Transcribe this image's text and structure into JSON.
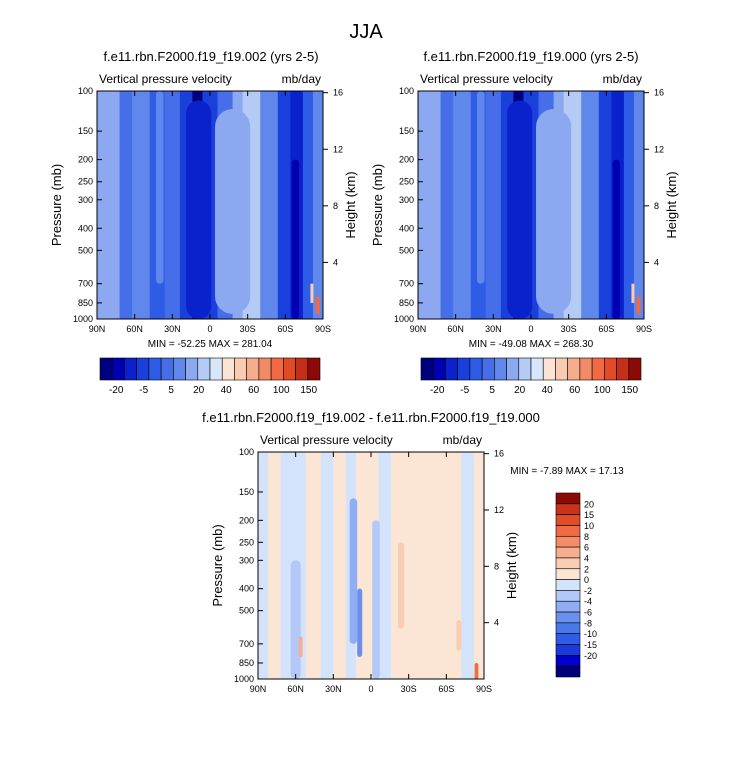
{
  "figure_title": "JJA",
  "colors": {
    "main_levels": [
      "#00007f",
      "#0000b3",
      "#0a22cc",
      "#1a40dc",
      "#2e5ce6",
      "#466ee8",
      "#6088ec",
      "#8ca8f0",
      "#b4cbf6",
      "#d8e6fb",
      "#fbe4d5",
      "#f9ccb2",
      "#f6ad8d",
      "#f38a66",
      "#f16a43",
      "#e04a25",
      "#c2301a",
      "#8b0a07"
    ],
    "diff_levels": [
      "#00007f",
      "#0000c8",
      "#1a3adc",
      "#2e5ce6",
      "#4878ea",
      "#6a90ee",
      "#90acf2",
      "#b2c8f6",
      "#d3e3fb",
      "#fbe6d6",
      "#f9cdb3",
      "#f6ae8e",
      "#f38d69",
      "#f06a45",
      "#e24d29",
      "#c9321b",
      "#8b0a07"
    ]
  },
  "chart_data": [
    {
      "type": "heatmap",
      "title": "f.e11.rbn.F2000.f19_f19.002 (yrs 2-5)",
      "left_label": "Vertical pressure velocity",
      "right_label": "mb/day",
      "xlabel": "",
      "ylabel": "Pressure (mb)",
      "ylabel_right": "Height (km)",
      "x_ticks": [
        "90N",
        "60N",
        "30N",
        "0",
        "30S",
        "60S",
        "90S"
      ],
      "x_values": [
        90,
        60,
        30,
        0,
        -30,
        -60,
        -90
      ],
      "y_ticks": [
        "100",
        "150",
        "200",
        "250",
        "300",
        "400",
        "500",
        "700",
        "850",
        "1000"
      ],
      "y_values": [
        100,
        150,
        200,
        250,
        300,
        400,
        500,
        700,
        850,
        1000
      ],
      "y_right_ticks": [
        "16",
        "12",
        "8",
        "4"
      ],
      "y_right_values": [
        16,
        12,
        8,
        4
      ],
      "ylim": [
        1000,
        100
      ],
      "min_max_text": "MIN = -52.25  MAX = 281.04",
      "min": -52.25,
      "max": 281.04,
      "colorbar_labels": [
        "-20",
        "-5",
        "5",
        "20",
        "40",
        "60",
        "100",
        "150"
      ],
      "bands": [
        {
          "lat": 90,
          "lev": 7
        },
        {
          "lat": 80,
          "lev": 7
        },
        {
          "lat": 72,
          "lev": 5
        },
        {
          "lat": 62,
          "lev": 6
        },
        {
          "lat": 48,
          "lev": 4
        },
        {
          "lat": 36,
          "lev": 5
        },
        {
          "lat": 24,
          "lev": 3
        },
        {
          "lat": 14,
          "lev": 0
        },
        {
          "lat": 6,
          "lev": 3
        },
        {
          "lat": -6,
          "lev": 5
        },
        {
          "lat": -18,
          "lev": 7
        },
        {
          "lat": -26,
          "lev": 8
        },
        {
          "lat": -40,
          "lev": 6
        },
        {
          "lat": -54,
          "lev": 3
        },
        {
          "lat": -64,
          "lev": 2
        },
        {
          "lat": -74,
          "lev": 4
        },
        {
          "lat": -82,
          "lev": 6
        },
        {
          "lat": -90,
          "lev": 5
        }
      ]
    },
    {
      "type": "heatmap",
      "title": "f.e11.rbn.F2000.f19_f19.000 (yrs 2-5)",
      "left_label": "Vertical pressure velocity",
      "right_label": "mb/day",
      "xlabel": "",
      "ylabel": "Pressure (mb)",
      "ylabel_right": "Height (km)",
      "x_ticks": [
        "90N",
        "60N",
        "30N",
        "0",
        "30S",
        "60S",
        "90S"
      ],
      "x_values": [
        90,
        60,
        30,
        0,
        -30,
        -60,
        -90
      ],
      "y_ticks": [
        "100",
        "150",
        "200",
        "250",
        "300",
        "400",
        "500",
        "700",
        "850",
        "1000"
      ],
      "y_values": [
        100,
        150,
        200,
        250,
        300,
        400,
        500,
        700,
        850,
        1000
      ],
      "y_right_ticks": [
        "16",
        "12",
        "8",
        "4"
      ],
      "y_right_values": [
        16,
        12,
        8,
        4
      ],
      "ylim": [
        1000,
        100
      ],
      "min_max_text": "MIN = -49.08  MAX = 268.30",
      "min": -49.08,
      "max": 268.3,
      "colorbar_labels": [
        "-20",
        "-5",
        "5",
        "20",
        "40",
        "60",
        "100",
        "150"
      ],
      "bands": [
        {
          "lat": 90,
          "lev": 7
        },
        {
          "lat": 80,
          "lev": 7
        },
        {
          "lat": 72,
          "lev": 5
        },
        {
          "lat": 62,
          "lev": 6
        },
        {
          "lat": 48,
          "lev": 4
        },
        {
          "lat": 36,
          "lev": 5
        },
        {
          "lat": 24,
          "lev": 3
        },
        {
          "lat": 14,
          "lev": 0
        },
        {
          "lat": 6,
          "lev": 3
        },
        {
          "lat": -6,
          "lev": 5
        },
        {
          "lat": -18,
          "lev": 7
        },
        {
          "lat": -26,
          "lev": 8
        },
        {
          "lat": -40,
          "lev": 6
        },
        {
          "lat": -54,
          "lev": 3
        },
        {
          "lat": -64,
          "lev": 2
        },
        {
          "lat": -74,
          "lev": 4
        },
        {
          "lat": -82,
          "lev": 6
        },
        {
          "lat": -90,
          "lev": 5
        }
      ]
    },
    {
      "type": "heatmap",
      "title": "f.e11.rbn.F2000.f19_f19.002 - f.e11.rbn.F2000.f19_f19.000",
      "left_label": "Vertical pressure velocity",
      "right_label": "mb/day",
      "xlabel": "",
      "ylabel": "Pressure (mb)",
      "ylabel_right": "Height (km)",
      "x_ticks": [
        "90N",
        "60N",
        "30N",
        "0",
        "30S",
        "60S",
        "90S"
      ],
      "x_values": [
        90,
        60,
        30,
        0,
        -30,
        -60,
        -90
      ],
      "y_ticks": [
        "100",
        "150",
        "200",
        "250",
        "300",
        "400",
        "500",
        "700",
        "850",
        "1000"
      ],
      "y_values": [
        100,
        150,
        200,
        250,
        300,
        400,
        500,
        700,
        850,
        1000
      ],
      "y_right_ticks": [
        "16",
        "12",
        "8",
        "4"
      ],
      "y_right_values": [
        16,
        12,
        8,
        4
      ],
      "ylim": [
        1000,
        100
      ],
      "min_max_text": "MIN =  -7.89  MAX =  17.13",
      "min": -7.89,
      "max": 17.13,
      "colorbar_labels": [
        "20",
        "15",
        "10",
        "8",
        "6",
        "4",
        "2",
        "0",
        "-2",
        "-4",
        "-6",
        "-8",
        "-10",
        "-15",
        "-20"
      ],
      "bands": [
        {
          "lat": 90,
          "lev": 8
        },
        {
          "lat": 82,
          "lev": 9
        },
        {
          "lat": 72,
          "lev": 8
        },
        {
          "lat": 62,
          "lev": 8
        },
        {
          "lat": 52,
          "lev": 9
        },
        {
          "lat": 40,
          "lev": 8
        },
        {
          "lat": 30,
          "lev": 9
        },
        {
          "lat": 20,
          "lev": 8
        },
        {
          "lat": 12,
          "lev": 9
        },
        {
          "lat": 4,
          "lev": 9
        },
        {
          "lat": -6,
          "lev": 8
        },
        {
          "lat": -16,
          "lev": 9
        },
        {
          "lat": -28,
          "lev": 9
        },
        {
          "lat": -40,
          "lev": 9
        },
        {
          "lat": -52,
          "lev": 9
        },
        {
          "lat": -62,
          "lev": 9
        },
        {
          "lat": -72,
          "lev": 8
        },
        {
          "lat": -82,
          "lev": 9
        },
        {
          "lat": -90,
          "lev": 8
        }
      ]
    }
  ]
}
